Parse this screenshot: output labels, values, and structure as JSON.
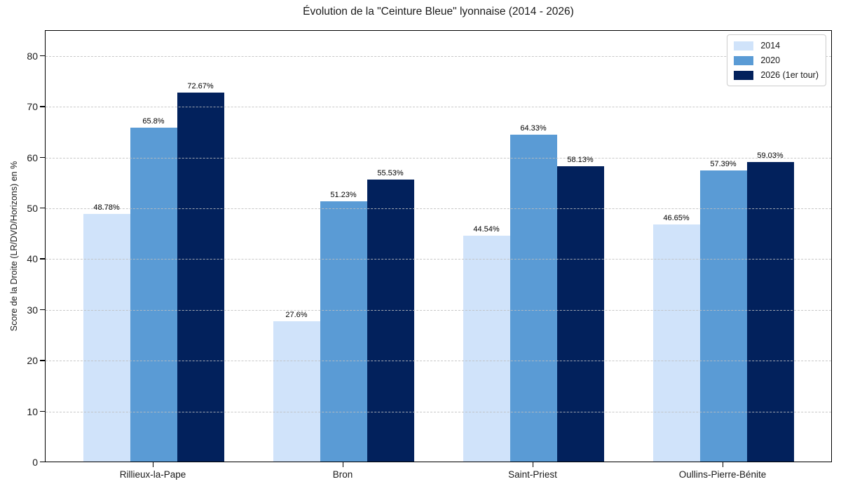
{
  "figure": {
    "background": "#ffffff",
    "plot_border_color": "#000000",
    "grid_color": "#bebebe"
  },
  "chart_data": {
    "type": "bar",
    "title": "Évolution de la \"Ceinture Bleue\" lyonnaise (2014 - 2026)",
    "xlabel": "",
    "ylabel": "Score de la Droite (LR/DVD/Horizons) en %",
    "categories": [
      "Rillieux-la-Pape",
      "Bron",
      "Saint-Priest",
      "Oullins-Pierre-Bénite"
    ],
    "series": [
      {
        "name": "2014",
        "color": "#d0e3fa",
        "values": [
          48.78,
          27.6,
          44.54,
          46.65
        ],
        "labels": [
          "48.78%",
          "27.6%",
          "44.54%",
          "46.65%"
        ]
      },
      {
        "name": "2020",
        "color": "#5a9bd5",
        "values": [
          65.8,
          51.23,
          64.33,
          57.39
        ],
        "labels": [
          "65.8%",
          "51.23%",
          "64.33%",
          "57.39%"
        ]
      },
      {
        "name": "2026 (1er tour)",
        "color": "#02215c",
        "values": [
          72.67,
          55.53,
          58.13,
          59.03
        ],
        "labels": [
          "72.67%",
          "55.53%",
          "58.13%",
          "59.03%"
        ]
      }
    ],
    "yticks": [
      0,
      10,
      20,
      30,
      40,
      50,
      60,
      70,
      80
    ],
    "ylim": [
      0,
      85
    ],
    "grid": "horizontal-dashed",
    "legend_position": "upper-right"
  }
}
